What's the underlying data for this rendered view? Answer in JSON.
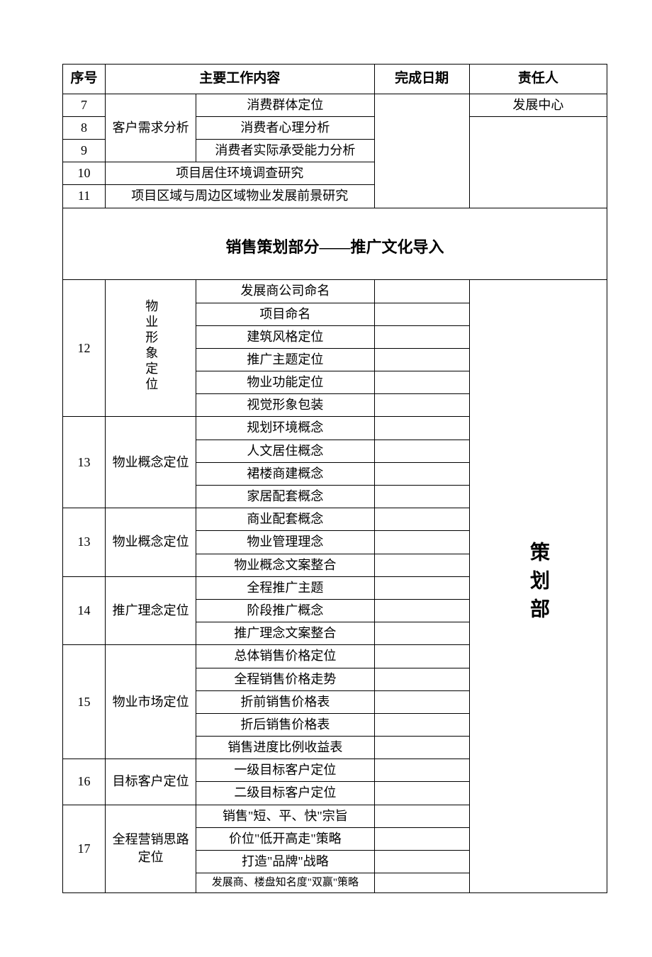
{
  "columns": {
    "seq": "序号",
    "content": "主要工作内容",
    "date": "完成日期",
    "owner": "责任人"
  },
  "top_owner": "发展中心",
  "rows_top": {
    "r7": "7",
    "r8": "8",
    "r9": "9",
    "r10": "10",
    "r11": "11",
    "group_label": "客户需求分析",
    "sub7": "消费群体定位",
    "sub8": "消费者心理分析",
    "sub9": "消费者实际承受能力分析",
    "full10": "项目居住环境调查研究",
    "full11": "项目区域与周边区域物业发展前景研究"
  },
  "section_title": "销售策划部分——推广文化导入",
  "big_owner": "策划部",
  "g12": {
    "num": "12",
    "label": "物业形象定位",
    "items": [
      "发展商公司命名",
      "项目命名",
      "建筑风格定位",
      "推广主题定位",
      "物业功能定位",
      "视觉形象包装"
    ]
  },
  "g13a": {
    "num": "13",
    "label": "物业概念定位",
    "items": [
      "规划环境概念",
      "人文居住概念",
      "裙楼商建概念",
      "家居配套概念"
    ]
  },
  "g13b": {
    "num": "13",
    "label": "物业概念定位",
    "items": [
      "商业配套概念",
      "物业管理理念",
      "物业概念文案整合"
    ]
  },
  "g14": {
    "num": "14",
    "label": "推广理念定位",
    "items": [
      "全程推广主题",
      "阶段推广概念",
      "推广理念文案整合"
    ]
  },
  "g15": {
    "num": "15",
    "label": "物业市场定位",
    "items": [
      "总体销售价格定位",
      "全程销售价格走势",
      "折前销售价格表",
      "折后销售价格表",
      "销售进度比例收益表"
    ]
  },
  "g16": {
    "num": "16",
    "label": "目标客户定位",
    "items": [
      "一级目标客户定位",
      "二级目标客户定位"
    ]
  },
  "g17": {
    "num": "17",
    "label": "全程营销思路定位",
    "items": [
      "销售\"短、平、快\"宗旨",
      "价位\"低开高走\"策略",
      "打造\"品牌\"战略",
      "发展商、楼盘知名度\"双赢\"策略"
    ]
  }
}
